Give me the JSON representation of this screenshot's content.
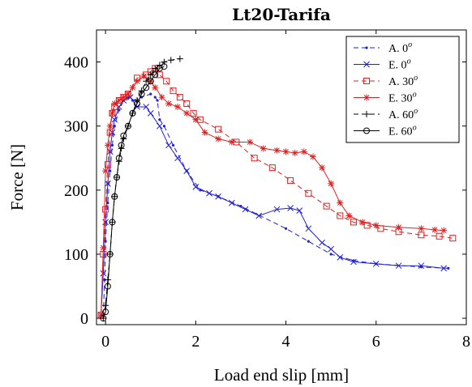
{
  "chart_data": {
    "type": "line",
    "title": "Lt20-Tarifa",
    "xlabel": "Load end slip [mm]",
    "ylabel": "Force [N]",
    "xlim": [
      -0.2,
      8.0
    ],
    "ylim": [
      -10,
      450
    ],
    "x_ticks": [
      "0",
      "2",
      "4",
      "6",
      "8"
    ],
    "y_ticks": [
      "0",
      "100",
      "200",
      "300",
      "400"
    ],
    "grid": false,
    "legend_position": "top-right",
    "colors": {
      "blue": "#1f1fd6",
      "red": "#e02020",
      "black": "#000000"
    },
    "series": [
      {
        "name": "A. 0",
        "sup": "o",
        "color": "#1f1fd6",
        "dash": "6,4",
        "marker": "dot",
        "x": [
          -0.05,
          -0.02,
          0.0,
          0.05,
          0.1,
          0.15,
          0.2,
          0.3,
          0.4,
          0.5,
          0.6,
          0.8,
          1.0,
          1.1,
          1.15,
          1.2,
          1.3,
          1.5,
          1.8,
          2.1,
          2.5,
          3.0,
          4.0,
          4.5,
          5.0,
          5.5,
          6.0,
          7.0,
          7.6
        ],
        "y": [
          5,
          60,
          120,
          180,
          230,
          270,
          300,
          325,
          340,
          345,
          340,
          345,
          350,
          345,
          340,
          310,
          300,
          270,
          230,
          200,
          190,
          175,
          140,
          120,
          100,
          90,
          85,
          80,
          78
        ]
      },
      {
        "name": "E. 0",
        "sup": "o",
        "color": "#1f1fd6",
        "dash": "",
        "marker": "x",
        "x": [
          -0.1,
          -0.05,
          0.0,
          0.05,
          0.1,
          0.15,
          0.2,
          0.3,
          0.4,
          0.55,
          0.7,
          0.9,
          1.0,
          1.2,
          1.4,
          1.6,
          1.8,
          2.0,
          2.3,
          2.5,
          2.8,
          3.1,
          3.4,
          3.8,
          4.1,
          4.3,
          4.5,
          4.8,
          5.0,
          5.2,
          5.5,
          6.0,
          6.5,
          7.0,
          7.5
        ],
        "y": [
          5,
          70,
          150,
          210,
          260,
          290,
          310,
          330,
          340,
          345,
          330,
          330,
          320,
          300,
          270,
          250,
          230,
          205,
          195,
          190,
          180,
          170,
          160,
          170,
          172,
          168,
          140,
          118,
          108,
          95,
          88,
          85,
          82,
          82,
          78
        ]
      },
      {
        "name": "A. 30",
        "sup": "o",
        "color": "#e02020",
        "dash": "6,4",
        "marker": "square",
        "x": [
          -0.1,
          -0.05,
          0.0,
          0.05,
          0.1,
          0.15,
          0.2,
          0.3,
          0.4,
          0.5,
          0.7,
          0.9,
          1.0,
          1.1,
          1.2,
          1.35,
          1.5,
          1.65,
          1.8,
          1.95,
          2.1,
          2.5,
          2.9,
          3.3,
          3.7,
          4.1,
          4.5,
          4.9,
          5.2,
          5.5,
          5.8,
          6.1,
          6.5,
          7.0,
          7.4,
          7.7
        ],
        "y": [
          5,
          100,
          170,
          240,
          290,
          320,
          330,
          340,
          345,
          350,
          375,
          380,
          385,
          390,
          380,
          370,
          355,
          345,
          335,
          320,
          310,
          295,
          275,
          250,
          235,
          215,
          195,
          175,
          160,
          150,
          145,
          140,
          135,
          130,
          128,
          125
        ]
      },
      {
        "name": "E. 30",
        "sup": "o",
        "color": "#e02020",
        "dash": "",
        "marker": "star",
        "x": [
          -0.1,
          -0.05,
          0.0,
          0.05,
          0.1,
          0.15,
          0.2,
          0.3,
          0.4,
          0.5,
          0.6,
          0.7,
          0.85,
          1.0,
          1.1,
          1.25,
          1.4,
          1.6,
          1.8,
          2.0,
          2.2,
          2.5,
          2.8,
          3.2,
          3.5,
          3.8,
          4.0,
          4.2,
          4.4,
          4.6,
          4.8,
          5.0,
          5.2,
          5.4,
          5.7,
          6.0,
          6.5,
          7.0,
          7.3,
          7.5
        ],
        "y": [
          5,
          110,
          230,
          270,
          300,
          320,
          335,
          340,
          345,
          350,
          360,
          370,
          378,
          370,
          360,
          345,
          335,
          330,
          320,
          310,
          290,
          280,
          275,
          275,
          265,
          262,
          260,
          258,
          260,
          252,
          235,
          210,
          180,
          160,
          150,
          145,
          142,
          140,
          138,
          137
        ]
      },
      {
        "name": "A. 60",
        "sup": "o",
        "color": "#000000",
        "dash": "6,4",
        "marker": "plus",
        "x": [
          -0.05,
          0.0,
          0.05,
          0.1,
          0.15,
          0.2,
          0.25,
          0.3,
          0.35,
          0.4,
          0.5,
          0.6,
          0.7,
          0.8,
          0.9,
          1.0,
          1.1,
          1.2,
          1.3,
          1.45,
          1.65
        ],
        "y": [
          0,
          20,
          60,
          100,
          150,
          190,
          220,
          245,
          265,
          280,
          300,
          320,
          340,
          355,
          370,
          380,
          390,
          395,
          400,
          403,
          405
        ]
      },
      {
        "name": "E. 60",
        "sup": "o",
        "color": "#000000",
        "dash": "",
        "marker": "circle",
        "x": [
          -0.05,
          0.0,
          0.05,
          0.1,
          0.15,
          0.2,
          0.25,
          0.3,
          0.35,
          0.4,
          0.5,
          0.6,
          0.7,
          0.8,
          0.9,
          1.0,
          1.1,
          1.2,
          1.3
        ],
        "y": [
          0,
          10,
          50,
          100,
          150,
          190,
          220,
          250,
          270,
          285,
          300,
          320,
          335,
          350,
          360,
          370,
          380,
          390,
          393
        ]
      }
    ]
  }
}
